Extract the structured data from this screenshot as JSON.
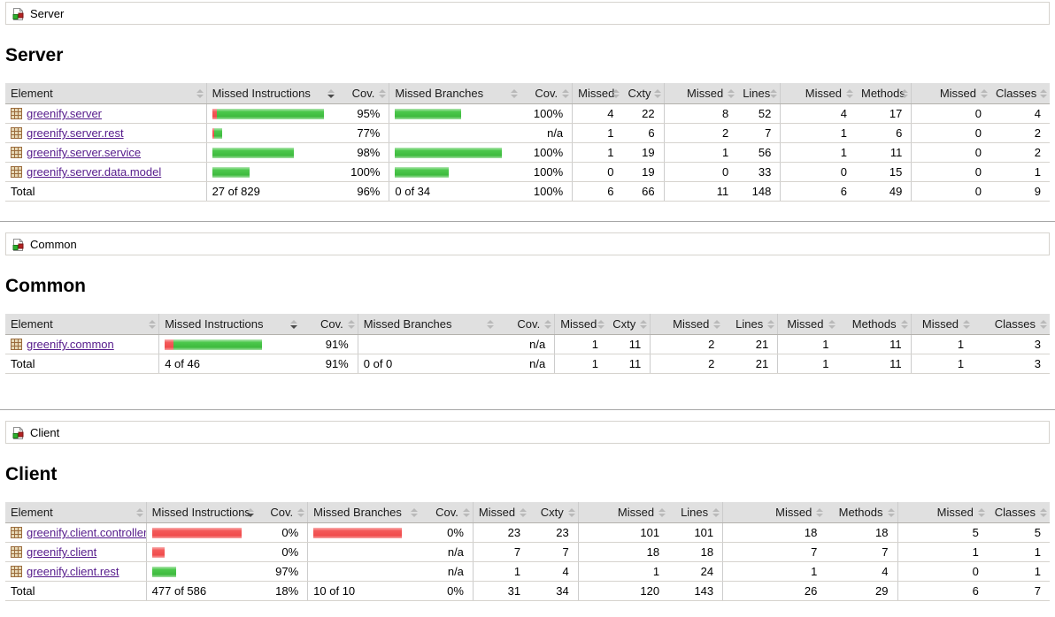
{
  "colors": {
    "green_bar": "#3eba3e",
    "red_bar": "#f04c4c",
    "link": "#551a8b",
    "header_bg": "#e0e0e0",
    "border": "#d6d3ce"
  },
  "sections": [
    {
      "id": "server",
      "breadcrumb": "Server",
      "heading": "Server",
      "sorted_column_index": 1,
      "sort_direction": "desc",
      "columns": [
        "Element",
        "Missed Instructions",
        "Cov.",
        "Missed Branches",
        "Cov.",
        "Missed",
        "Cxty",
        "Missed",
        "Lines",
        "Missed",
        "Methods",
        "Missed",
        "Classes"
      ],
      "rows": [
        {
          "name": "greenify.server",
          "instr_bar": {
            "red": 4,
            "green": 92
          },
          "instr_cov": "95%",
          "branch_bar": {
            "red": 0,
            "green": 57
          },
          "branch_cov": "100%",
          "metrics": [
            "4",
            "22",
            "8",
            "52",
            "4",
            "17",
            "0",
            "4"
          ]
        },
        {
          "name": "greenify.server.rest",
          "instr_bar": {
            "red": 2,
            "green": 7
          },
          "instr_cov": "77%",
          "branch_bar": {
            "red": 0,
            "green": 0
          },
          "branch_cov": "n/a",
          "metrics": [
            "1",
            "6",
            "2",
            "7",
            "1",
            "6",
            "0",
            "2"
          ]
        },
        {
          "name": "greenify.server.service",
          "instr_bar": {
            "red": 0,
            "green": 70
          },
          "instr_cov": "98%",
          "branch_bar": {
            "red": 0,
            "green": 92
          },
          "branch_cov": "100%",
          "metrics": [
            "1",
            "19",
            "1",
            "56",
            "1",
            "11",
            "0",
            "2"
          ]
        },
        {
          "name": "greenify.server.data.model",
          "instr_bar": {
            "red": 0,
            "green": 32
          },
          "instr_cov": "100%",
          "branch_bar": {
            "red": 0,
            "green": 46
          },
          "branch_cov": "100%",
          "metrics": [
            "0",
            "19",
            "0",
            "33",
            "0",
            "15",
            "0",
            "1"
          ]
        }
      ],
      "total": {
        "label": "Total",
        "instr": "27 of 829",
        "instr_cov": "96%",
        "branch": "0 of 34",
        "branch_cov": "100%",
        "metrics": [
          "6",
          "66",
          "11",
          "148",
          "6",
          "49",
          "0",
          "9"
        ]
      }
    },
    {
      "id": "common",
      "breadcrumb": "Common",
      "heading": "Common",
      "sorted_column_index": 1,
      "sort_direction": "desc",
      "columns": [
        "Element",
        "Missed Instructions",
        "Cov.",
        "Missed Branches",
        "Cov.",
        "Missed",
        "Cxty",
        "Missed",
        "Lines",
        "Missed",
        "Methods",
        "Missed",
        "Classes"
      ],
      "rows": [
        {
          "name": "greenify.common",
          "instr_bar": {
            "red": 7,
            "green": 70
          },
          "instr_cov": "91%",
          "branch_bar": {
            "red": 0,
            "green": 0
          },
          "branch_cov": "n/a",
          "metrics": [
            "1",
            "11",
            "2",
            "21",
            "1",
            "11",
            "1",
            "3"
          ]
        }
      ],
      "total": {
        "label": "Total",
        "instr": "4 of 46",
        "instr_cov": "91%",
        "branch": "0 of 0",
        "branch_cov": "n/a",
        "metrics": [
          "1",
          "11",
          "2",
          "21",
          "1",
          "11",
          "1",
          "3"
        ]
      }
    },
    {
      "id": "client",
      "breadcrumb": "Client",
      "heading": "Client",
      "sorted_column_index": 1,
      "sort_direction": "desc",
      "columns": [
        "Element",
        "Missed Instructions",
        "Cov.",
        "Missed Branches",
        "Cov.",
        "Missed",
        "Cxty",
        "Missed",
        "Lines",
        "Missed",
        "Methods",
        "Missed",
        "Classes"
      ],
      "rows": [
        {
          "name": "greenify.client.controller",
          "instr_bar": {
            "red": 93,
            "green": 0
          },
          "instr_cov": "0%",
          "branch_bar": {
            "red": 90,
            "green": 0
          },
          "branch_cov": "0%",
          "metrics": [
            "23",
            "23",
            "101",
            "101",
            "18",
            "18",
            "5",
            "5"
          ]
        },
        {
          "name": "greenify.client",
          "instr_bar": {
            "red": 13,
            "green": 0
          },
          "instr_cov": "0%",
          "branch_bar": {
            "red": 0,
            "green": 0
          },
          "branch_cov": "n/a",
          "metrics": [
            "7",
            "7",
            "18",
            "18",
            "7",
            "7",
            "1",
            "1"
          ]
        },
        {
          "name": "greenify.client.rest",
          "instr_bar": {
            "red": 0,
            "green": 25
          },
          "instr_cov": "97%",
          "branch_bar": {
            "red": 0,
            "green": 0
          },
          "branch_cov": "n/a",
          "metrics": [
            "1",
            "4",
            "1",
            "24",
            "1",
            "4",
            "0",
            "1"
          ]
        }
      ],
      "total": {
        "label": "Total",
        "instr": "477 of 586",
        "instr_cov": "18%",
        "branch": "10 of 10",
        "branch_cov": "0%",
        "metrics": [
          "31",
          "34",
          "120",
          "143",
          "26",
          "29",
          "6",
          "7"
        ]
      }
    }
  ]
}
